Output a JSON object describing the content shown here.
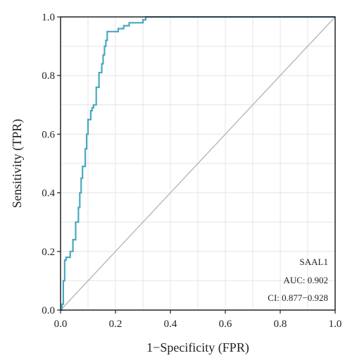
{
  "chart_data": {
    "type": "line",
    "title": "",
    "xlabel": "1−Specificity (FPR)",
    "ylabel": "Sensitivity (TPR)",
    "xlim": [
      0.0,
      1.0
    ],
    "ylim": [
      0.0,
      1.0
    ],
    "xticks": [
      0.0,
      0.2,
      0.4,
      0.6,
      0.8,
      1.0
    ],
    "yticks": [
      0.0,
      0.2,
      0.4,
      0.6,
      0.8,
      1.0
    ],
    "xtick_labels": [
      "0.0",
      "0.2",
      "0.4",
      "0.6",
      "0.8",
      "1.0"
    ],
    "ytick_labels": [
      "0.0",
      "0.2",
      "0.4",
      "0.6",
      "0.8",
      "1.0"
    ],
    "grid": true,
    "colors": {
      "roc": "#4aa8c0",
      "diagonal": "#b8b8b8",
      "grid": "#e4e4e4",
      "frame": "#222222"
    },
    "series": [
      {
        "name": "SAAL1",
        "x": [
          0.0,
          0.005,
          0.005,
          0.01,
          0.01,
          0.015,
          0.015,
          0.02,
          0.02,
          0.035,
          0.035,
          0.045,
          0.045,
          0.055,
          0.055,
          0.065,
          0.065,
          0.07,
          0.07,
          0.075,
          0.075,
          0.08,
          0.08,
          0.09,
          0.09,
          0.095,
          0.095,
          0.1,
          0.1,
          0.11,
          0.11,
          0.115,
          0.115,
          0.12,
          0.12,
          0.13,
          0.13,
          0.14,
          0.14,
          0.15,
          0.15,
          0.155,
          0.155,
          0.16,
          0.16,
          0.165,
          0.165,
          0.17,
          0.17,
          0.18,
          0.18,
          0.19,
          0.19,
          0.21,
          0.21,
          0.22,
          0.22,
          0.23,
          0.23,
          0.25,
          0.25,
          0.3,
          0.3,
          0.31,
          0.31,
          1.0
        ],
        "y": [
          0.0,
          0.0,
          0.02,
          0.02,
          0.1,
          0.1,
          0.17,
          0.17,
          0.18,
          0.18,
          0.2,
          0.2,
          0.24,
          0.24,
          0.3,
          0.3,
          0.35,
          0.35,
          0.4,
          0.4,
          0.45,
          0.45,
          0.49,
          0.49,
          0.55,
          0.55,
          0.6,
          0.6,
          0.65,
          0.65,
          0.68,
          0.68,
          0.69,
          0.69,
          0.7,
          0.7,
          0.76,
          0.76,
          0.81,
          0.81,
          0.84,
          0.84,
          0.87,
          0.87,
          0.9,
          0.9,
          0.92,
          0.92,
          0.95,
          0.95,
          0.95,
          0.95,
          0.95,
          0.95,
          0.96,
          0.96,
          0.96,
          0.96,
          0.97,
          0.97,
          0.98,
          0.98,
          0.99,
          0.99,
          1.0,
          1.0
        ]
      },
      {
        "name": "",
        "x": [
          0.0,
          1.0
        ],
        "y": [
          0.0,
          1.0
        ]
      }
    ],
    "annotations": [
      "SAAL1",
      "AUC: 0.902",
      "CI: 0.877−0.928"
    ],
    "annotation_position": "bottom-right"
  }
}
